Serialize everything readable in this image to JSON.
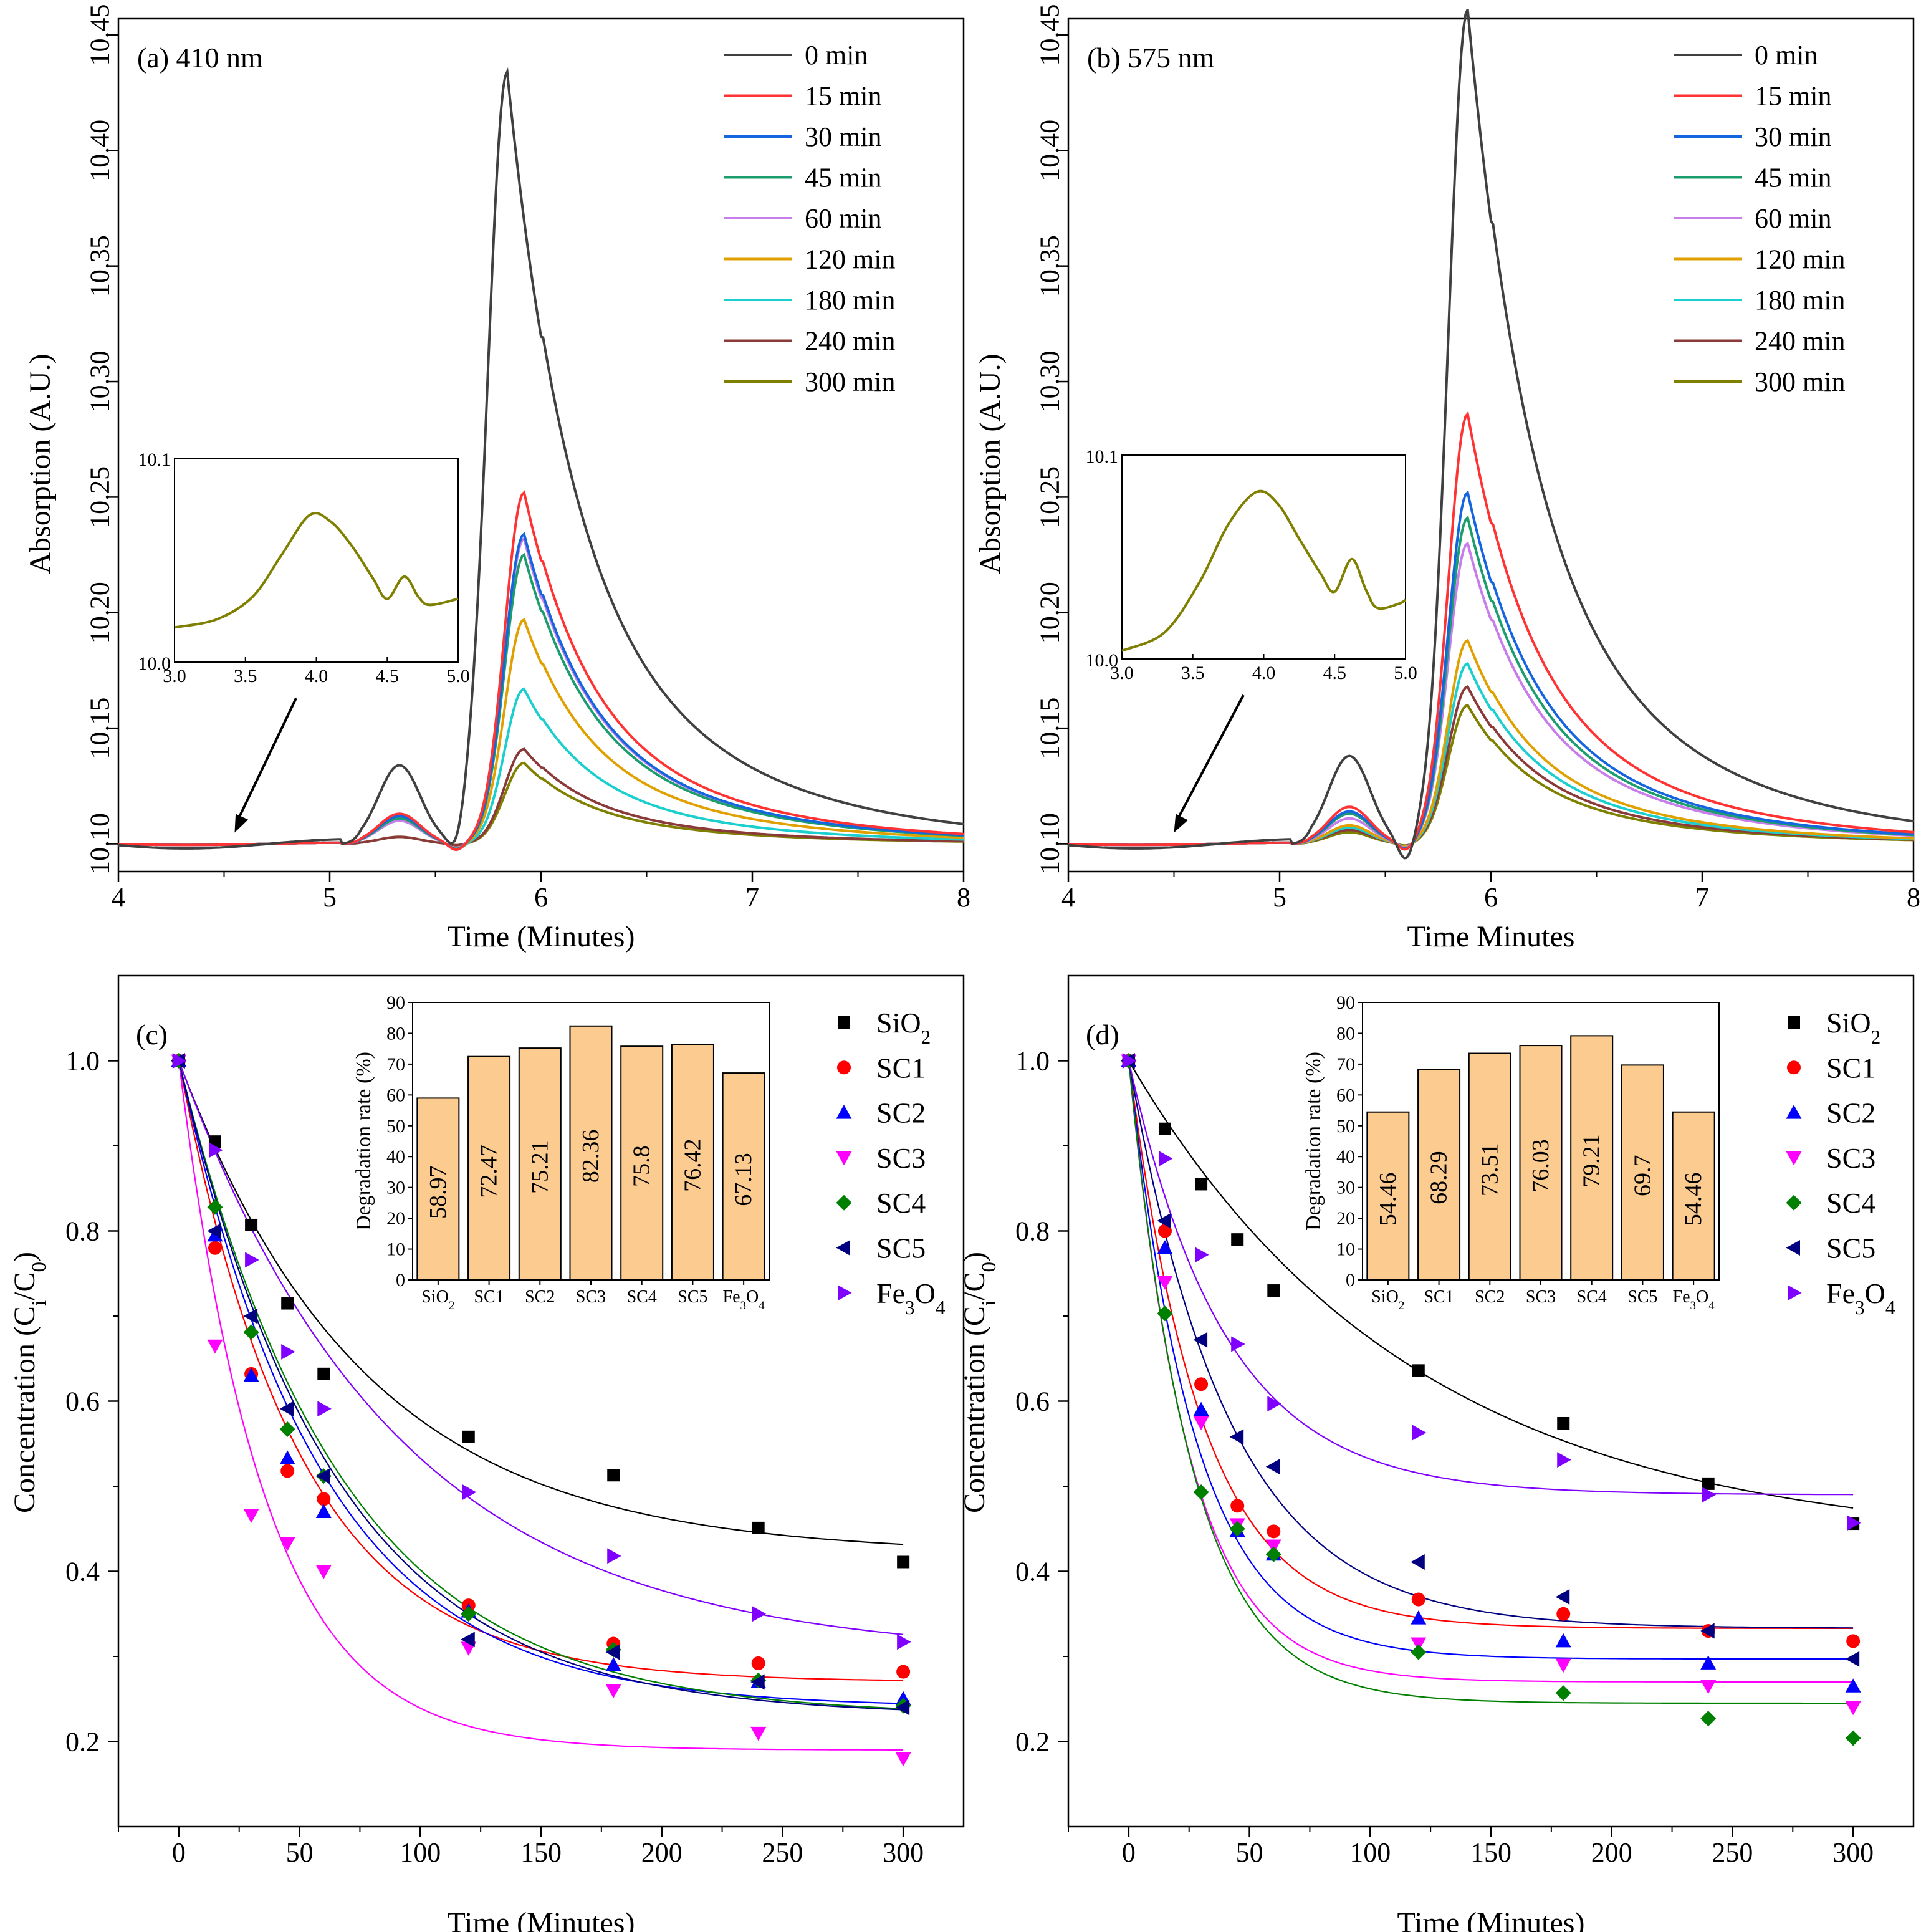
{
  "colors": {
    "0 min": "#404040",
    "15 min": "#ff3333",
    "30 min": "#1565e0",
    "45 min": "#1b9d6e",
    "60 min": "#c77dea",
    "120 min": "#e0a000",
    "180 min": "#1ccfcf",
    "240 min": "#8b3a3a",
    "300 min": "#7f7f00",
    "SiO2": "#000000",
    "SC1": "#ff0000",
    "SC2": "#0000ff",
    "SC3": "#ff00ff",
    "SC4": "#008000",
    "SC5": "#000080",
    "Fe3O4": "#8000ff",
    "bar_fill": "#fbcb8f"
  },
  "chart_data": [
    {
      "id": "a",
      "type": "line",
      "title": "(a) 410 nm",
      "xlabel": "Time (Minutes)",
      "ylabel": "Absorption (A.U.)",
      "xlim": [
        4,
        8
      ],
      "ylim": [
        10.088,
        10.457
      ],
      "xticks": [
        "4",
        "5",
        "6",
        "7",
        "8"
      ],
      "yticks": [
        "10.10",
        "10.15",
        "10.20",
        "10.25",
        "10.30",
        "10.35",
        "10.40",
        "10.45"
      ],
      "baseline": 10.1,
      "legend": [
        "0 min",
        "15 min",
        "30 min",
        "45 min",
        "60 min",
        "120 min",
        "180 min",
        "240 min",
        "300 min"
      ],
      "series": [
        {
          "name": "0 min",
          "peak": 10.434,
          "shoulder": 10.134
        },
        {
          "name": "15 min",
          "peak": 10.252,
          "shoulder": 10.113
        },
        {
          "name": "30 min",
          "peak": 10.234,
          "shoulder": 10.112
        },
        {
          "name": "45 min",
          "peak": 10.225,
          "shoulder": 10.111
        },
        {
          "name": "60 min",
          "peak": 10.232,
          "shoulder": 10.11
        },
        {
          "name": "120 min",
          "peak": 10.197,
          "shoulder": 10.111
        },
        {
          "name": "180 min",
          "peak": 10.167,
          "shoulder": 10.11
        },
        {
          "name": "240 min",
          "peak": 10.141,
          "shoulder": 10.103
        },
        {
          "name": "300 min",
          "peak": 10.135,
          "shoulder": 10.103
        }
      ],
      "inset": {
        "xlim": [
          3.0,
          5.0
        ],
        "ylim": [
          10.0,
          10.1
        ],
        "xticks": [
          "3.0",
          "3.5",
          "4.0",
          "4.5",
          "5.0"
        ],
        "yticks": [
          "10.0",
          "10.1"
        ],
        "series": "300 min",
        "points": [
          [
            3.0,
            10.017
          ],
          [
            3.3,
            10.021
          ],
          [
            3.55,
            10.032
          ],
          [
            3.75,
            10.052
          ],
          [
            3.95,
            10.072
          ],
          [
            4.1,
            10.069
          ],
          [
            4.25,
            10.057
          ],
          [
            4.4,
            10.041
          ],
          [
            4.5,
            10.031
          ],
          [
            4.62,
            10.042
          ],
          [
            4.72,
            10.032
          ],
          [
            4.8,
            10.028
          ],
          [
            5.0,
            10.031
          ]
        ]
      },
      "arrow_at": 4.55
    },
    {
      "id": "b",
      "type": "line",
      "title": "(b) 575 nm",
      "xlabel": "Time Minutes",
      "ylabel": "Absorption (A.U.)",
      "xlim": [
        4,
        8
      ],
      "ylim": [
        10.088,
        10.457
      ],
      "xticks": [
        "4",
        "5",
        "6",
        "7",
        "8"
      ],
      "yticks": [
        "10.10",
        "10.15",
        "10.20",
        "10.25",
        "10.30",
        "10.35",
        "10.40",
        "10.45"
      ],
      "baseline": 10.1,
      "legend": [
        "0 min",
        "15 min",
        "30 min",
        "45 min",
        "60 min",
        "120 min",
        "180 min",
        "240 min",
        "300 min"
      ],
      "series": [
        {
          "name": "0 min",
          "peak": 10.461,
          "shoulder": 10.138
        },
        {
          "name": "15 min",
          "peak": 10.286,
          "shoulder": 10.116
        },
        {
          "name": "30 min",
          "peak": 10.252,
          "shoulder": 10.114
        },
        {
          "name": "45 min",
          "peak": 10.241,
          "shoulder": 10.113
        },
        {
          "name": "60 min",
          "peak": 10.23,
          "shoulder": 10.111
        },
        {
          "name": "120 min",
          "peak": 10.188,
          "shoulder": 10.108
        },
        {
          "name": "180 min",
          "peak": 10.178,
          "shoulder": 10.107
        },
        {
          "name": "240 min",
          "peak": 10.168,
          "shoulder": 10.106
        },
        {
          "name": "300 min",
          "peak": 10.16,
          "shoulder": 10.105
        }
      ],
      "inset": {
        "xlim": [
          3.0,
          5.0
        ],
        "ylim": [
          10.0,
          10.1
        ],
        "xticks": [
          "3.0",
          "3.5",
          "4.0",
          "4.5",
          "5.0"
        ],
        "yticks": [
          "10.0",
          "10.1"
        ],
        "series": "300 min",
        "points": [
          [
            3.0,
            10.004
          ],
          [
            3.3,
            10.013
          ],
          [
            3.55,
            10.038
          ],
          [
            3.75,
            10.066
          ],
          [
            3.95,
            10.082
          ],
          [
            4.1,
            10.076
          ],
          [
            4.25,
            10.059
          ],
          [
            4.4,
            10.042
          ],
          [
            4.5,
            10.033
          ],
          [
            4.62,
            10.049
          ],
          [
            4.72,
            10.034
          ],
          [
            4.8,
            10.025
          ],
          [
            4.95,
            10.027
          ],
          [
            5.0,
            10.029
          ]
        ]
      },
      "arrow_at": 4.5
    },
    {
      "id": "c",
      "type": "scatter",
      "title": "(c)",
      "xlabel": "Time (Minutes)",
      "ylabel": "Concentration (Ci/C0)",
      "xlim": [
        -25,
        325
      ],
      "ylim": [
        0.1,
        1.1
      ],
      "xticks": [
        "0",
        "50",
        "100",
        "150",
        "200",
        "250",
        "300"
      ],
      "yticks": [
        "0.2",
        "0.4",
        "0.6",
        "0.8",
        "1.0"
      ],
      "x": [
        0,
        15,
        30,
        45,
        60,
        120,
        180,
        240,
        300
      ],
      "legend": [
        "SiO2",
        "SC1",
        "SC2",
        "SC3",
        "SC4",
        "SC5",
        "Fe3O4"
      ],
      "series": [
        {
          "name": "SiO2",
          "marker": "square",
          "values": [
            1.0,
            0.905,
            0.807,
            0.715,
            0.632,
            0.558,
            0.513,
            0.451,
            0.411
          ],
          "fit": {
            "a": 0.42,
            "b": 0.58,
            "k": 0.013
          }
        },
        {
          "name": "SC1",
          "marker": "circle",
          "values": [
            1.0,
            0.78,
            0.632,
            0.518,
            0.485,
            0.36,
            0.315,
            0.292,
            0.282
          ],
          "fit": {
            "a": 0.27,
            "b": 0.73,
            "k": 0.02
          }
        },
        {
          "name": "SC2",
          "marker": "triangle-up",
          "values": [
            1.0,
            0.795,
            0.63,
            0.533,
            0.47,
            0.353,
            0.29,
            0.27,
            0.25
          ],
          "fit": {
            "a": 0.24,
            "b": 0.76,
            "k": 0.017
          }
        },
        {
          "name": "SC3",
          "marker": "triangle-down",
          "values": [
            1.0,
            0.665,
            0.466,
            0.433,
            0.4,
            0.31,
            0.26,
            0.21,
            0.18
          ],
          "fit": {
            "a": 0.19,
            "b": 0.81,
            "k": 0.028
          }
        },
        {
          "name": "SC4",
          "marker": "diamond",
          "values": [
            1.0,
            0.828,
            0.681,
            0.567,
            0.512,
            0.35,
            0.308,
            0.272,
            0.242
          ],
          "fit": {
            "a": 0.23,
            "b": 0.77,
            "k": 0.015
          }
        },
        {
          "name": "SC5",
          "marker": "triangle-left",
          "values": [
            1.0,
            0.8,
            0.7,
            0.591,
            0.512,
            0.32,
            0.305,
            0.27,
            0.24
          ],
          "fit": {
            "a": 0.23,
            "b": 0.77,
            "k": 0.0155
          }
        },
        {
          "name": "Fe3O4",
          "marker": "triangle-right",
          "values": [
            1.0,
            0.895,
            0.766,
            0.658,
            0.591,
            0.493,
            0.418,
            0.35,
            0.317
          ],
          "fit": {
            "a": 0.3,
            "b": 0.7,
            "k": 0.011
          }
        }
      ],
      "inset": {
        "type": "bar",
        "ylabel": "Degradation rate (%)",
        "ylim": [
          0,
          90
        ],
        "yticks": [
          "0",
          "10",
          "20",
          "30",
          "40",
          "50",
          "60",
          "70",
          "80",
          "90"
        ],
        "categories": [
          "SiO2",
          "SC1",
          "SC2",
          "SC3",
          "SC4",
          "SC5",
          "Fe3O4"
        ],
        "values": [
          58.97,
          72.47,
          75.21,
          82.36,
          75.8,
          76.42,
          67.13
        ],
        "labels": [
          "58.97",
          "72.47",
          "75.21",
          "82.36",
          "75.8",
          "76.42",
          "67.13"
        ]
      }
    },
    {
      "id": "d",
      "type": "scatter",
      "title": "(d)",
      "xlabel": "Time (Minutes)",
      "ylabel": "Concentration (Ci/C0)",
      "xlim": [
        -25,
        325
      ],
      "ylim": [
        0.1,
        1.1
      ],
      "xticks": [
        "0",
        "50",
        "100",
        "150",
        "200",
        "250",
        "300"
      ],
      "yticks": [
        "0.2",
        "0.4",
        "0.6",
        "0.8",
        "1.0"
      ],
      "x": [
        0,
        15,
        30,
        45,
        60,
        120,
        180,
        240,
        300
      ],
      "legend": [
        "SiO2",
        "SC1",
        "SC2",
        "SC3",
        "SC4",
        "SC5",
        "Fe3O4"
      ],
      "series": [
        {
          "name": "SiO2",
          "marker": "square",
          "values": [
            1.0,
            0.92,
            0.855,
            0.79,
            0.73,
            0.636,
            0.574,
            0.503,
            0.456
          ],
          "fit": {
            "a": 0.43,
            "b": 0.57,
            "k": 0.0085
          }
        },
        {
          "name": "SC1",
          "marker": "circle",
          "values": [
            1.0,
            0.8,
            0.62,
            0.477,
            0.447,
            0.367,
            0.35,
            0.33,
            0.318
          ],
          "fit": {
            "a": 0.333,
            "b": 0.667,
            "k": 0.033
          }
        },
        {
          "name": "SC2",
          "marker": "triangle-up",
          "values": [
            1.0,
            0.78,
            0.59,
            0.448,
            0.42,
            0.345,
            0.318,
            0.292,
            0.265
          ],
          "fit": {
            "a": 0.297,
            "b": 0.703,
            "k": 0.036
          }
        },
        {
          "name": "SC3",
          "marker": "triangle-down",
          "values": [
            1.0,
            0.74,
            0.575,
            0.455,
            0.43,
            0.315,
            0.29,
            0.265,
            0.24
          ],
          "fit": {
            "a": 0.27,
            "b": 0.73,
            "k": 0.04
          }
        },
        {
          "name": "SC4",
          "marker": "diamond",
          "values": [
            1.0,
            0.703,
            0.493,
            0.45,
            0.42,
            0.305,
            0.257,
            0.227,
            0.204
          ],
          "fit": {
            "a": 0.245,
            "b": 0.755,
            "k": 0.038
          }
        },
        {
          "name": "SC5",
          "marker": "triangle-left",
          "values": [
            1.0,
            0.812,
            0.672,
            0.558,
            0.523,
            0.411,
            0.37,
            0.33,
            0.297
          ],
          "fit": {
            "a": 0.333,
            "b": 0.667,
            "k": 0.024
          }
        },
        {
          "name": "Fe3O4",
          "marker": "triangle-right",
          "values": [
            1.0,
            0.885,
            0.772,
            0.667,
            0.597,
            0.563,
            0.531,
            0.49,
            0.457
          ],
          "fit": {
            "a": 0.49,
            "b": 0.51,
            "k": 0.025
          }
        }
      ],
      "inset": {
        "type": "bar",
        "ylabel": "Degradation rate (%)",
        "ylim": [
          0,
          90
        ],
        "yticks": [
          "0",
          "10",
          "20",
          "30",
          "40",
          "50",
          "60",
          "70",
          "80",
          "90"
        ],
        "categories": [
          "SiO2",
          "SC1",
          "SC2",
          "SC3",
          "SC4",
          "SC5",
          "Fe3O4"
        ],
        "values": [
          54.46,
          68.29,
          73.51,
          76.03,
          79.21,
          69.7,
          54.46
        ],
        "labels": [
          "54.46",
          "68.29",
          "73.51",
          "76.03",
          "79.21",
          "69.7",
          "54.46"
        ]
      }
    }
  ]
}
